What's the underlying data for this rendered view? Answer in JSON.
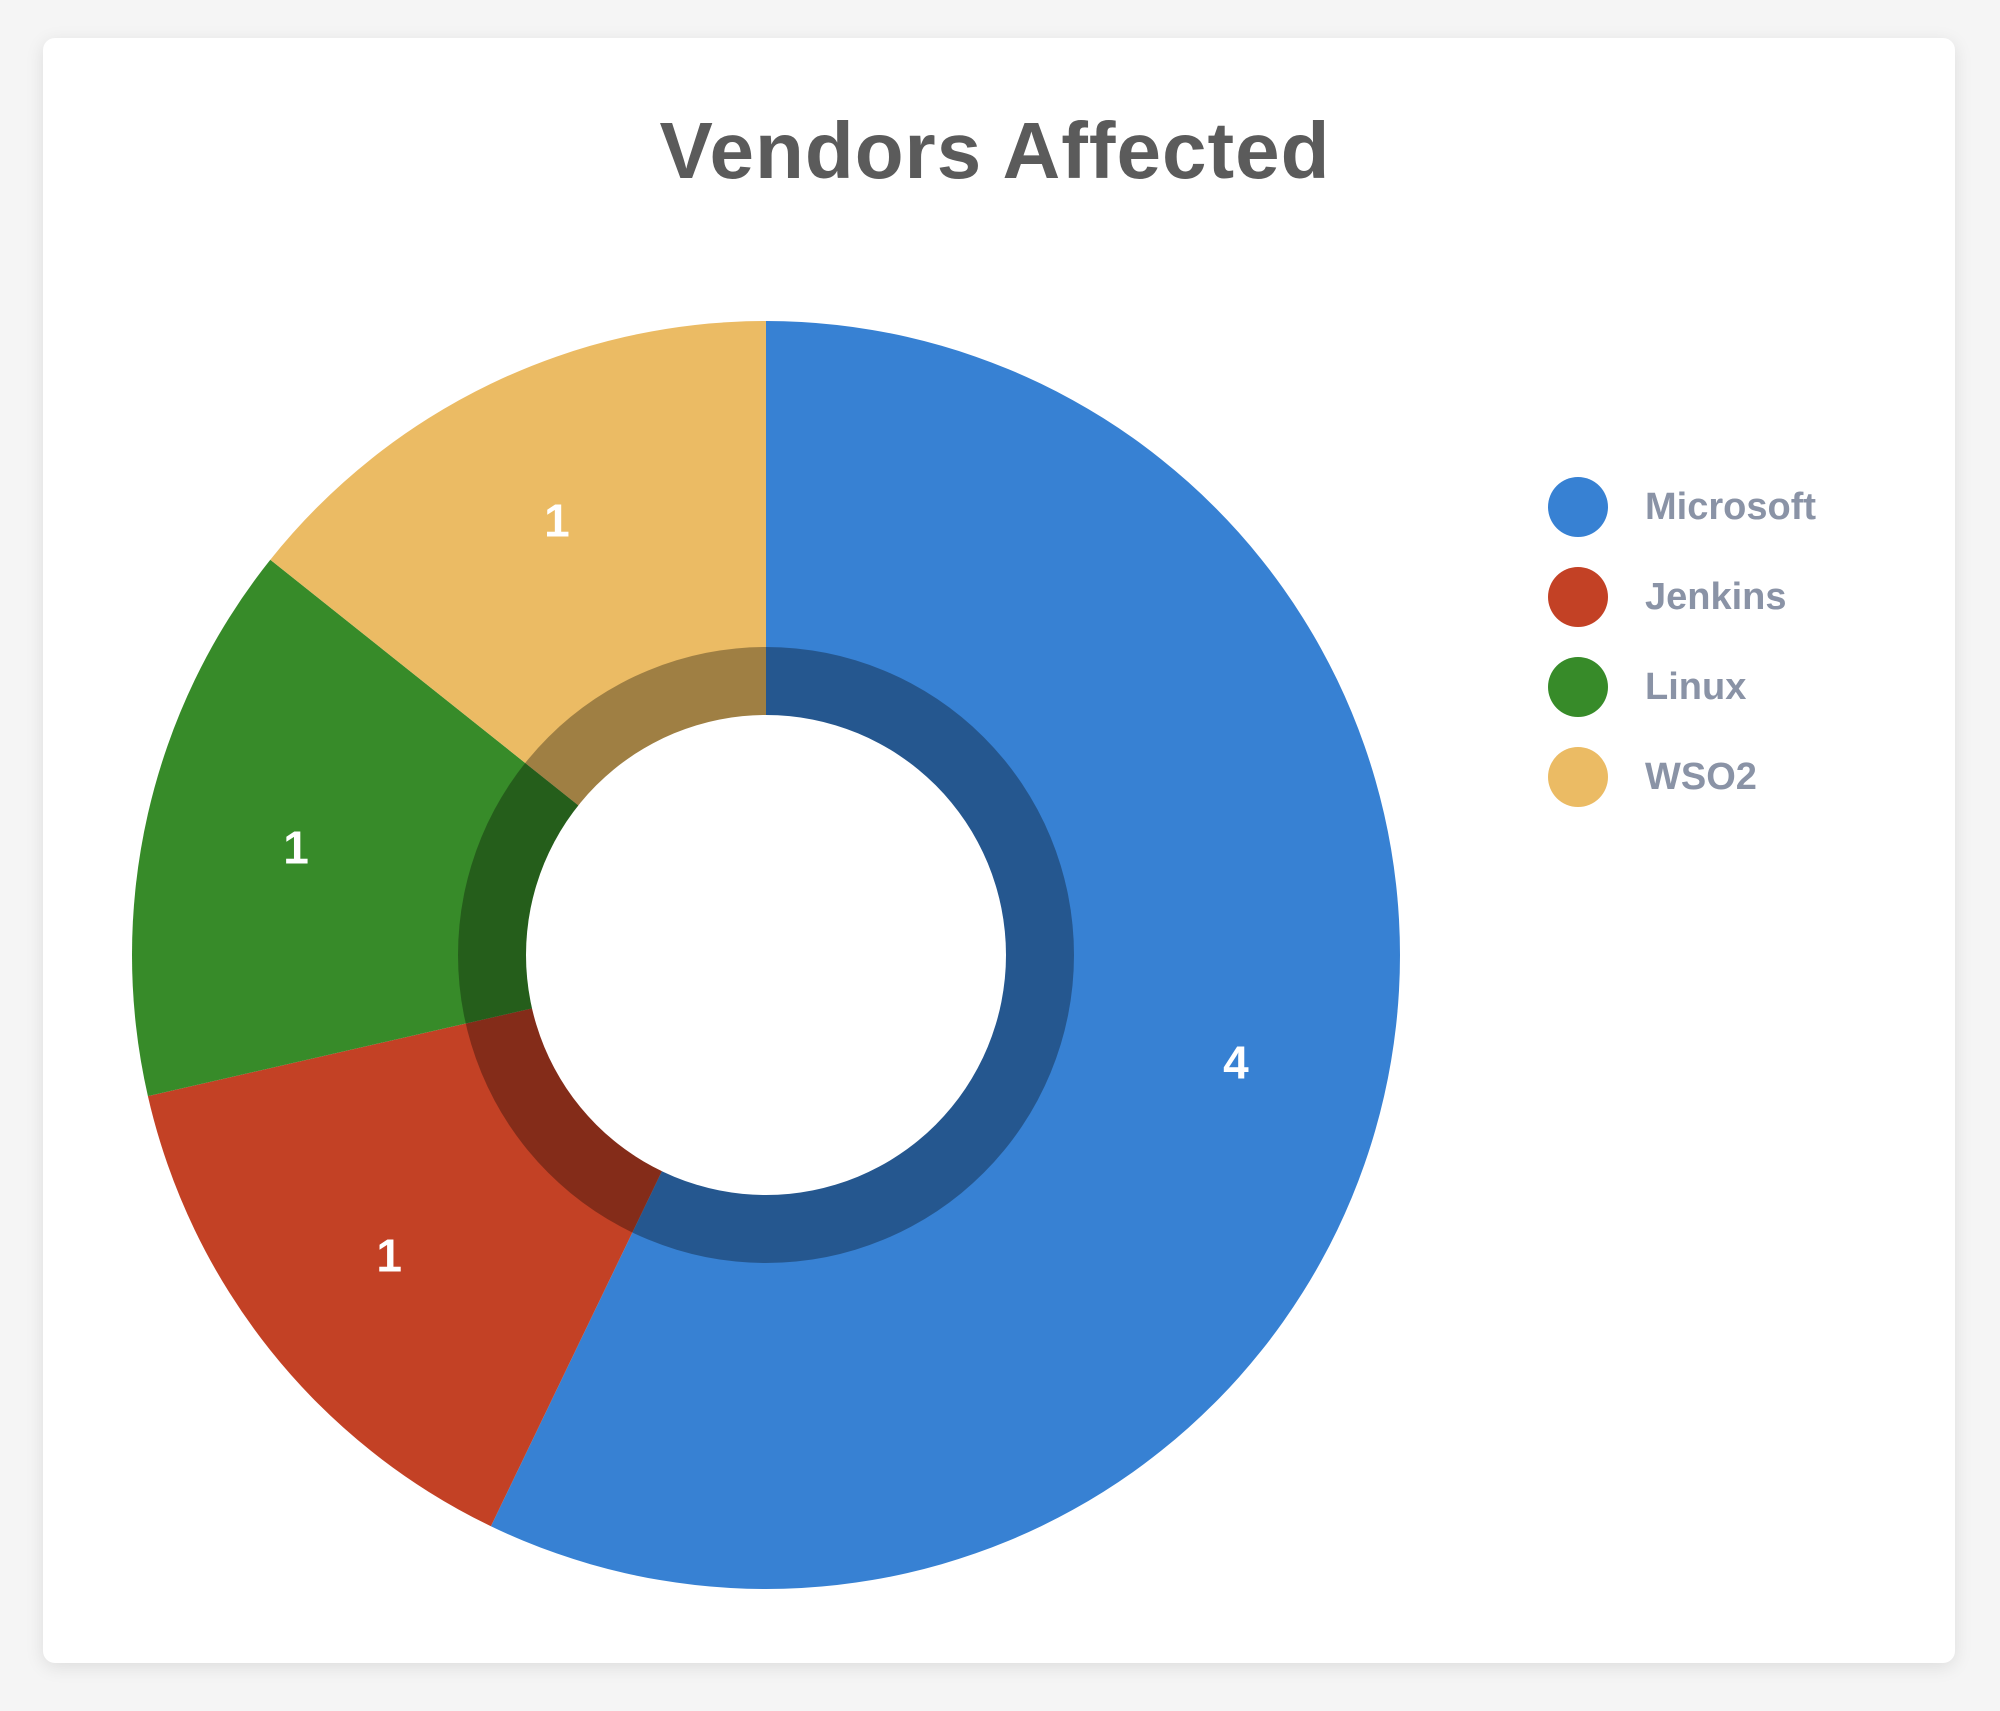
{
  "chart_data": {
    "type": "pie",
    "title": "Vendors Affected",
    "categories": [
      "Microsoft",
      "Jenkins",
      "Linux",
      "WSO2"
    ],
    "values": [
      4,
      1,
      1,
      1
    ],
    "colors": [
      "#3781d3",
      "#c34125",
      "#378b29",
      "#ebbb64"
    ],
    "legend_position": "right"
  }
}
